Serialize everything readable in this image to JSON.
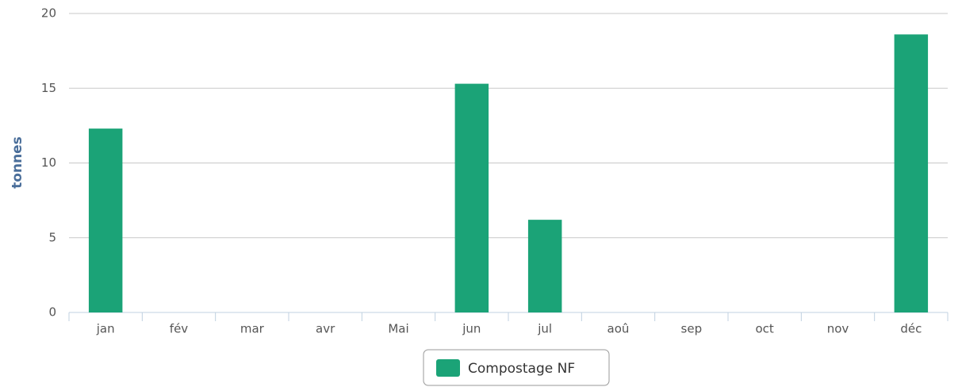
{
  "chart_data": {
    "type": "bar",
    "y_label": "tonnes",
    "categories": [
      "jan",
      "fév",
      "mar",
      "avr",
      "Mai",
      "jun",
      "jul",
      "aoû",
      "sep",
      "oct",
      "nov",
      "déc"
    ],
    "series": [
      {
        "name": "Compostage NF",
        "color": "#1ba377",
        "values": [
          12.3,
          0,
          0,
          0,
          0,
          15.3,
          6.2,
          0,
          0,
          0,
          0,
          18.6
        ]
      }
    ],
    "ylim": [
      0,
      20
    ],
    "yticks": [
      0,
      5,
      10,
      15,
      20
    ],
    "grid": true,
    "legend": "bottom"
  }
}
